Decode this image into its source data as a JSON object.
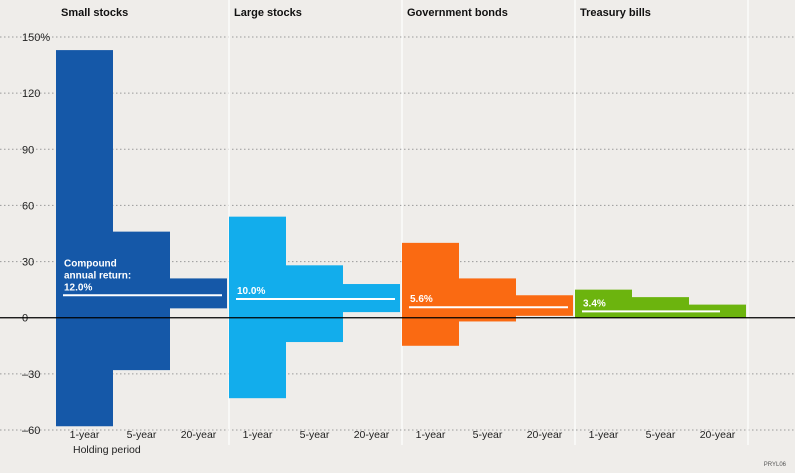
{
  "chart_data": {
    "type": "bar",
    "title": "",
    "xlabel": "Holding period",
    "ylabel": "",
    "ylim": [
      -60,
      150
    ],
    "yticks": [
      {
        "value": 150,
        "label": "150%"
      },
      {
        "value": 120,
        "label": "120"
      },
      {
        "value": 90,
        "label": "90"
      },
      {
        "value": 60,
        "label": "60"
      },
      {
        "value": 30,
        "label": "30"
      },
      {
        "value": 0,
        "label": "0"
      },
      {
        "value": -30,
        "label": "–30"
      },
      {
        "value": -60,
        "label": "–60"
      }
    ],
    "holding_periods": [
      "1-year",
      "5-year",
      "20-year"
    ],
    "grid": true,
    "groups": [
      {
        "name": "Small stocks",
        "color": "#1558a8",
        "compound_annual_return_value": 12.0,
        "annotation_lines": [
          "Compound",
          "annual return:",
          "12.0%"
        ],
        "ranges": [
          {
            "period": "1-year",
            "low": -58,
            "high": 143
          },
          {
            "period": "5-year",
            "low": -28,
            "high": 46
          },
          {
            "period": "20-year",
            "low": 5,
            "high": 21
          }
        ]
      },
      {
        "name": "Large stocks",
        "color": "#12adec",
        "compound_annual_return_value": 10.0,
        "annotation_lines": [
          "10.0%"
        ],
        "ranges": [
          {
            "period": "1-year",
            "low": -43,
            "high": 54
          },
          {
            "period": "5-year",
            "low": -13,
            "high": 28
          },
          {
            "period": "20-year",
            "low": 3,
            "high": 18
          }
        ]
      },
      {
        "name": "Government bonds",
        "color": "#fa6a12",
        "compound_annual_return_value": 5.6,
        "annotation_lines": [
          "5.6%"
        ],
        "ranges": [
          {
            "period": "1-year",
            "low": -15,
            "high": 40
          },
          {
            "period": "5-year",
            "low": -2,
            "high": 21
          },
          {
            "period": "20-year",
            "low": 1,
            "high": 12
          }
        ]
      },
      {
        "name": "Treasury bills",
        "color": "#6cb40e",
        "compound_annual_return_value": 3.4,
        "annotation_lines": [
          "3.4%"
        ],
        "ranges": [
          {
            "period": "1-year",
            "low": 0,
            "high": 15
          },
          {
            "period": "5-year",
            "low": 0,
            "high": 11
          },
          {
            "period": "20-year",
            "low": 0,
            "high": 7
          }
        ]
      }
    ]
  },
  "credit": "PRYL06",
  "colors": {
    "background": "#efedea",
    "gridline": "#9a9a9a",
    "baseline": "#000000",
    "return_line": "#ffffff"
  }
}
